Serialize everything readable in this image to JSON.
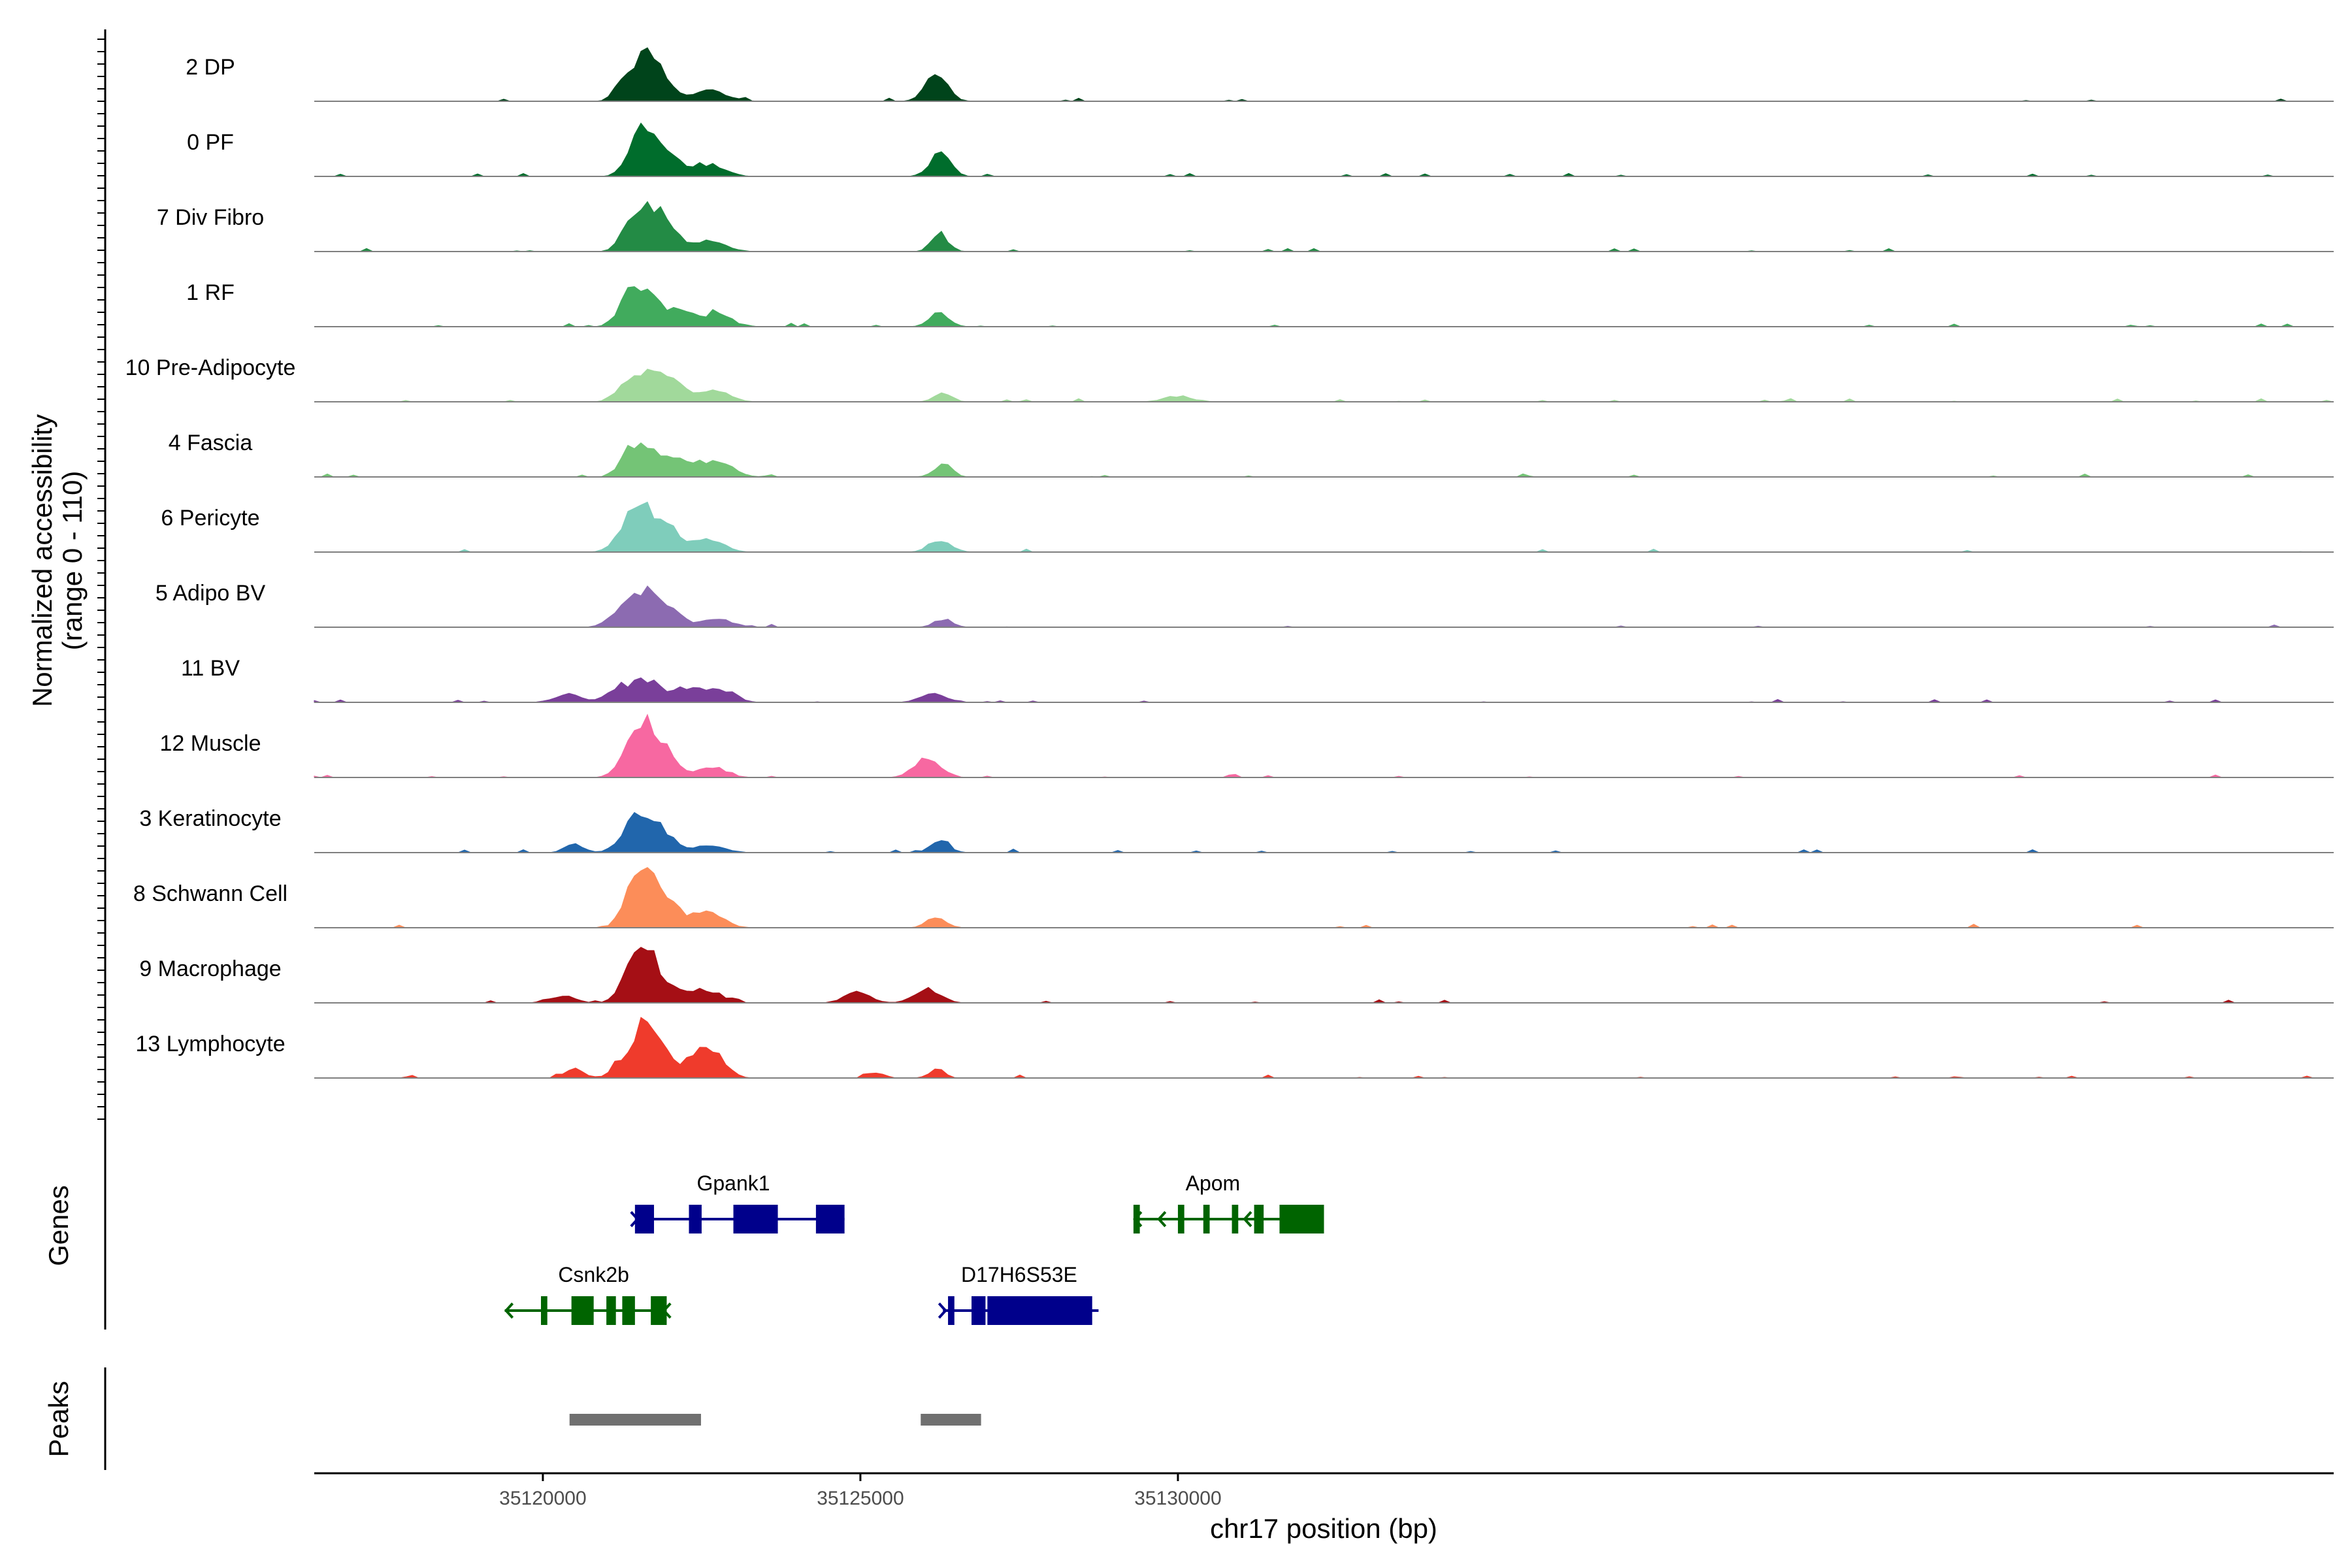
{
  "chart_data": {
    "type": "area",
    "title": "",
    "xlabel": "chr17 position (bp)",
    "ylabel": "Normalized accessibility\n(range 0 - 110)",
    "ylabel_lines": [
      "Normalized accessibility",
      "(range 0 - 110)"
    ],
    "ylim": [
      0,
      110
    ],
    "xlim": [
      35116400,
      35148200
    ],
    "x_ticks": [
      35120000,
      35125000,
      35130000
    ],
    "x_tick_labels": [
      "35120000",
      "35125000",
      "35130000"
    ],
    "peak_centers": [
      35121400,
      35121700,
      35122700,
      35126200
    ],
    "tracks": [
      {
        "name": "2 DP",
        "color": "#00441b",
        "peaks": [
          [
            35121300,
            150,
            35
          ],
          [
            35121600,
            200,
            60
          ],
          [
            35121850,
            180,
            35
          ],
          [
            35122600,
            280,
            18
          ],
          [
            35126200,
            170,
            48
          ]
        ]
      },
      {
        "name": "0 PF",
        "color": "#006d2c",
        "peaks": [
          [
            35121450,
            160,
            40
          ],
          [
            35121650,
            180,
            58
          ],
          [
            35121950,
            200,
            35
          ],
          [
            35122600,
            250,
            20
          ],
          [
            35126250,
            160,
            40
          ]
        ]
      },
      {
        "name": "7 Div Fibro",
        "color": "#238b45",
        "peaks": [
          [
            35121400,
            160,
            45
          ],
          [
            35121700,
            210,
            58
          ],
          [
            35122000,
            180,
            30
          ],
          [
            35122650,
            240,
            18
          ],
          [
            35126250,
            130,
            32
          ]
        ]
      },
      {
        "name": "1 RF",
        "color": "#41ab5d",
        "peaks": [
          [
            35121350,
            170,
            40
          ],
          [
            35121650,
            220,
            52
          ],
          [
            35122200,
            200,
            25
          ],
          [
            35122750,
            230,
            20
          ],
          [
            35126250,
            150,
            25
          ]
        ]
      },
      {
        "name": "10 Pre-Adipocyte",
        "color": "#a1d99b",
        "peaks": [
          [
            35121300,
            170,
            25
          ],
          [
            35121700,
            220,
            48
          ],
          [
            35122100,
            190,
            30
          ],
          [
            35122700,
            220,
            22
          ],
          [
            35126300,
            140,
            14
          ],
          [
            35130000,
            220,
            10
          ]
        ]
      },
      {
        "name": "4 Fascia",
        "color": "#74c476",
        "peaks": [
          [
            35121400,
            170,
            40
          ],
          [
            35121700,
            220,
            40
          ],
          [
            35122200,
            220,
            28
          ],
          [
            35122750,
            240,
            25
          ],
          [
            35126300,
            140,
            22
          ]
        ]
      },
      {
        "name": "6 Pericyte",
        "color": "#7fcdbb",
        "peaks": [
          [
            35121300,
            170,
            42
          ],
          [
            35121600,
            180,
            70
          ],
          [
            35122000,
            180,
            38
          ],
          [
            35122600,
            230,
            25
          ],
          [
            35126250,
            170,
            22
          ]
        ]
      },
      {
        "name": "5 Adipo BV",
        "color": "#8c6bb1",
        "peaks": [
          [
            35121200,
            170,
            28
          ],
          [
            35121600,
            200,
            52
          ],
          [
            35121950,
            220,
            30
          ],
          [
            35122750,
            230,
            15
          ],
          [
            35126300,
            140,
            14
          ]
        ]
      },
      {
        "name": "11 BV",
        "color": "#7a3f9a",
        "peaks": [
          [
            35120400,
            200,
            15
          ],
          [
            35121200,
            190,
            25
          ],
          [
            35121650,
            200,
            38
          ],
          [
            35122300,
            260,
            25
          ],
          [
            35122850,
            200,
            20
          ],
          [
            35126150,
            200,
            16
          ]
        ]
      },
      {
        "name": "12 Muscle",
        "color": "#f768a1",
        "peaks": [
          [
            35121350,
            170,
            45
          ],
          [
            35121650,
            170,
            88
          ],
          [
            35122000,
            170,
            32
          ],
          [
            35122650,
            230,
            18
          ],
          [
            35126050,
            200,
            32
          ]
        ]
      },
      {
        "name": "3 Keratinocyte",
        "color": "#2166ac",
        "peaks": [
          [
            35120500,
            150,
            15
          ],
          [
            35121350,
            170,
            40
          ],
          [
            35121650,
            170,
            60
          ],
          [
            35122000,
            190,
            20
          ],
          [
            35122650,
            230,
            12
          ],
          [
            35126250,
            150,
            20
          ]
        ]
      },
      {
        "name": "8 Schwann Cell",
        "color": "#fc8d59",
        "peaks": [
          [
            35121400,
            170,
            45
          ],
          [
            35121650,
            190,
            68
          ],
          [
            35122000,
            200,
            32
          ],
          [
            35122600,
            230,
            30
          ],
          [
            35126200,
            150,
            18
          ]
        ]
      },
      {
        "name": "9 Macrophage",
        "color": "#a50f15",
        "peaks": [
          [
            35120300,
            200,
            12
          ],
          [
            35121400,
            170,
            58
          ],
          [
            35121650,
            150,
            82
          ],
          [
            35122000,
            200,
            25
          ],
          [
            35122600,
            240,
            20
          ],
          [
            35124950,
            200,
            18
          ],
          [
            35126050,
            200,
            25
          ]
        ]
      },
      {
        "name": "13 Lymphocyte",
        "color": "#ef3b2c",
        "peaks": [
          [
            35120500,
            150,
            15
          ],
          [
            35121300,
            170,
            35
          ],
          [
            35121600,
            130,
            98
          ],
          [
            35121900,
            160,
            45
          ],
          [
            35122400,
            200,
            30
          ],
          [
            35122700,
            200,
            35
          ],
          [
            35125250,
            120,
            10
          ],
          [
            35126200,
            120,
            15
          ]
        ]
      }
    ],
    "genes": [
      {
        "name": "Gpank1",
        "strand": "+",
        "color": "#00008b",
        "start": 35121450,
        "end": 35124750,
        "row": 1,
        "exons": [
          [
            35121450,
            35121750
          ],
          [
            35122300,
            35122500
          ],
          [
            35123000,
            35123700
          ],
          [
            35124300,
            35124750
          ]
        ]
      },
      {
        "name": "Apom",
        "strand": "-",
        "color": "#006400",
        "start": 35129300,
        "end": 35132300,
        "row": 1,
        "exons": [
          [
            35129300,
            35129400
          ],
          [
            35130000,
            35130100
          ],
          [
            35130400,
            35130500
          ],
          [
            35130850,
            35130950
          ],
          [
            35131200,
            35131350
          ],
          [
            35131600,
            35132300
          ]
        ]
      },
      {
        "name": "Csnk2b",
        "strand": "-",
        "color": "#006400",
        "start": 35119400,
        "end": 35121950,
        "row": 2,
        "exons": [
          [
            35119970,
            35120070
          ],
          [
            35120450,
            35120800
          ],
          [
            35121000,
            35121150
          ],
          [
            35121250,
            35121450
          ],
          [
            35121700,
            35121950
          ]
        ]
      },
      {
        "name": "D17H6S53E",
        "strand": "+",
        "color": "#00008b",
        "start": 35126300,
        "end": 35128750,
        "row": 2,
        "exons": [
          [
            35126380,
            35126480
          ],
          [
            35126750,
            35126970
          ],
          [
            35127000,
            35128650
          ]
        ]
      }
    ],
    "peaks": [
      {
        "start": 35120420,
        "end": 35122490
      },
      {
        "start": 35125950,
        "end": 35126900
      }
    ],
    "panel_labels": {
      "genes": "Genes",
      "peaks": "Peaks"
    },
    "legend": "none",
    "grid": false
  },
  "colors": {
    "baseline": "#7f7f7f",
    "axis": "#000000",
    "peak_bar": "#707070",
    "tick_text": "#4d4d4d"
  }
}
